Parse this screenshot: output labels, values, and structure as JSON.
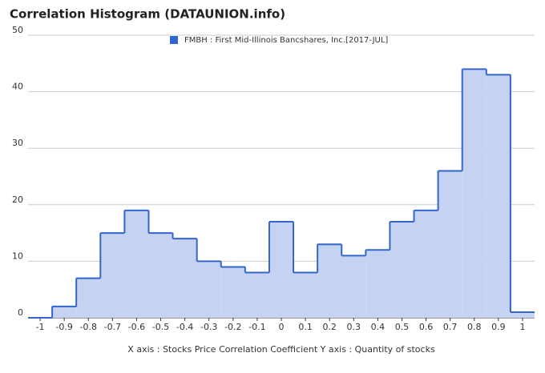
{
  "chart_data": {
    "type": "step-histogram",
    "title": "Correlation Histogram (DATAUNION.info)",
    "axis_caption": "X axis : Stocks Price Correlation Coefficient  Y axis : Quantity of stocks",
    "x": [
      -1,
      -0.9,
      -0.8,
      -0.7,
      -0.6,
      -0.5,
      -0.4,
      -0.3,
      -0.2,
      -0.1,
      0,
      0.1,
      0.2,
      0.3,
      0.4,
      0.5,
      0.6,
      0.7,
      0.8,
      0.9,
      1
    ],
    "series": [
      {
        "name": "FMBH : First Mid-Illinois Bancshares, Inc.[2017-JUL]",
        "color": "#3366cc",
        "values": [
          0,
          2,
          7,
          15,
          19,
          15,
          14,
          10,
          9,
          8,
          17,
          8,
          13,
          11,
          12,
          17,
          19,
          26,
          44,
          43,
          1
        ]
      }
    ],
    "xlim": [
      -1.05,
      1.05
    ],
    "xticks": [
      -1,
      -0.9,
      -0.8,
      -0.7,
      -0.6,
      -0.5,
      -0.4,
      -0.3,
      -0.2,
      -0.1,
      0,
      0.1,
      0.2,
      0.3,
      0.4,
      0.5,
      0.6,
      0.7,
      0.8,
      0.9,
      1
    ],
    "ylim": [
      0,
      50
    ],
    "yticks": [
      0,
      10,
      20,
      30,
      40,
      50
    ],
    "grid": true
  }
}
